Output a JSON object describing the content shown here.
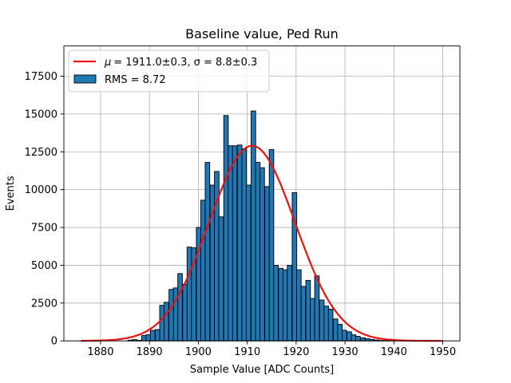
{
  "chart_data": {
    "type": "bar",
    "title": "Baseline value, Ped Run",
    "xlabel": "Sample Value [ADC Counts]",
    "ylabel": "Events",
    "xlim": [
      1872.5,
      1953.5
    ],
    "ylim": [
      0,
      19500
    ],
    "grid": true,
    "xticks": [
      1880,
      1890,
      1900,
      1910,
      1920,
      1930,
      1940,
      1950
    ],
    "yticks": [
      0,
      2500,
      5000,
      7500,
      10000,
      12500,
      15000,
      17500
    ],
    "xtick_labels": [
      "1880",
      "1890",
      "1900",
      "1910",
      "1920",
      "1930",
      "1940",
      "1950"
    ],
    "ytick_labels": [
      "0",
      "2500",
      "5000",
      "7500",
      "10000",
      "12500",
      "15000",
      "17500"
    ],
    "bin_width": 0.93,
    "histogram": {
      "name": "RMS = 8.72",
      "color": "#1f77b4",
      "edgecolor": "#000000",
      "bin_lefts": [
        1885.6,
        1886.5,
        1887.4,
        1888.4,
        1889.3,
        1890.2,
        1891.2,
        1892.1,
        1893.0,
        1894.0,
        1894.9,
        1895.8,
        1896.8,
        1897.7,
        1898.6,
        1899.6,
        1900.5,
        1901.4,
        1902.4,
        1903.3,
        1904.2,
        1905.2,
        1906.1,
        1907.0,
        1908.0,
        1908.9,
        1909.8,
        1910.8,
        1911.7,
        1912.6,
        1913.6,
        1914.5,
        1915.4,
        1916.4,
        1917.3,
        1918.2,
        1919.2,
        1920.1,
        1921.0,
        1922.0,
        1922.9,
        1923.8,
        1924.8,
        1925.7,
        1926.6,
        1927.6,
        1928.5,
        1929.4,
        1930.4,
        1931.3,
        1932.2,
        1933.2,
        1934.1,
        1935.0,
        1936.0,
        1936.9,
        1937.8,
        1938.8,
        1939.7,
        1940.6
      ],
      "counts": [
        50,
        80,
        40,
        350,
        400,
        700,
        750,
        2350,
        2550,
        3400,
        3500,
        4450,
        3750,
        6200,
        6150,
        7500,
        9300,
        11800,
        10300,
        11200,
        8200,
        14900,
        12900,
        12900,
        12950,
        12700,
        10300,
        15200,
        11800,
        11450,
        10200,
        12650,
        5000,
        4800,
        4700,
        5000,
        9800,
        4700,
        3600,
        4000,
        2800,
        4300,
        2700,
        2300,
        2100,
        1450,
        1100,
        700,
        600,
        400,
        300,
        200,
        150,
        100,
        60,
        30,
        20,
        10,
        5,
        5
      ]
    },
    "fit": {
      "name_prefix": "μ",
      "legend_label": "= 1911.0±0.3, σ = 8.8±0.3",
      "mu": 1911.0,
      "sigma": 8.8,
      "amplitude": 12900,
      "x_range": [
        1876,
        1950
      ],
      "color": "#ee1111"
    },
    "legend": {
      "placement": "top-left",
      "entries": [
        "μ = 1911.0±0.3, σ = 8.8±0.3",
        "RMS = 8.72"
      ]
    }
  }
}
